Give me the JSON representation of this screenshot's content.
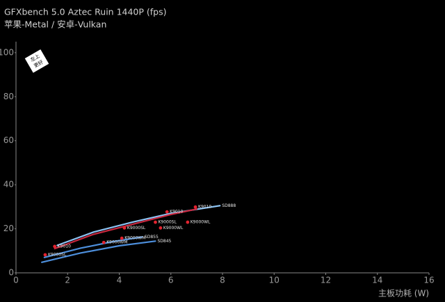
{
  "chart_data": {
    "type": "scatter",
    "title": "GFXbench 5.0 Aztec Ruin 1440P (fps)",
    "subtitle": "苹果-Metal / 安卓-Vulkan",
    "x_label": "主板功耗 (W)",
    "annotation": [
      "左上",
      "更好"
    ],
    "xlim": [
      0,
      16
    ],
    "xticks": [
      0,
      2,
      4,
      6,
      8,
      10,
      12,
      14,
      16
    ],
    "ylim": [
      0,
      105
    ],
    "yticks": [
      0,
      20,
      40,
      60,
      80,
      100
    ],
    "point_color": "#e3232f",
    "points": {
      "x": [
        1.5,
        1.13,
        4.2,
        5.4,
        5.6,
        6.65,
        3.4,
        4.1,
        5.85,
        6.95
      ],
      "y": [
        12,
        8.2,
        20.4,
        23,
        20.4,
        23,
        13.8,
        15.7,
        27.7,
        29.9
      ],
      "labels": [
        "K9010",
        "K9000SL",
        "K9000SL",
        "K9000SL",
        "K9000WL",
        "K9000WL",
        "K9000WM",
        "K9000WM",
        "K9010",
        "K9010"
      ]
    },
    "curves": [
      {
        "name": "SD888",
        "color": "#8cc2f2",
        "x": [
          1.6,
          3,
          4.5,
          6,
          7.9
        ],
        "y": [
          12.5,
          18.5,
          23,
          27,
          30.5
        ]
      },
      {
        "color": "#c9283f",
        "x": [
          1.5,
          3,
          4.5,
          6,
          7
        ],
        "y": [
          11,
          17.5,
          22,
          26.5,
          29
        ]
      },
      {
        "name": "SD855",
        "color": "#4d8fdc",
        "x": [
          1.1,
          2.5,
          3.8,
          4.9
        ],
        "y": [
          7,
          11.2,
          14.3,
          16.3
        ]
      },
      {
        "name": "SD845",
        "color": "#4d8fdc",
        "x": [
          1,
          2.5,
          4,
          5.4
        ],
        "y": [
          4.8,
          9,
          12.3,
          14.4
        ]
      }
    ]
  }
}
